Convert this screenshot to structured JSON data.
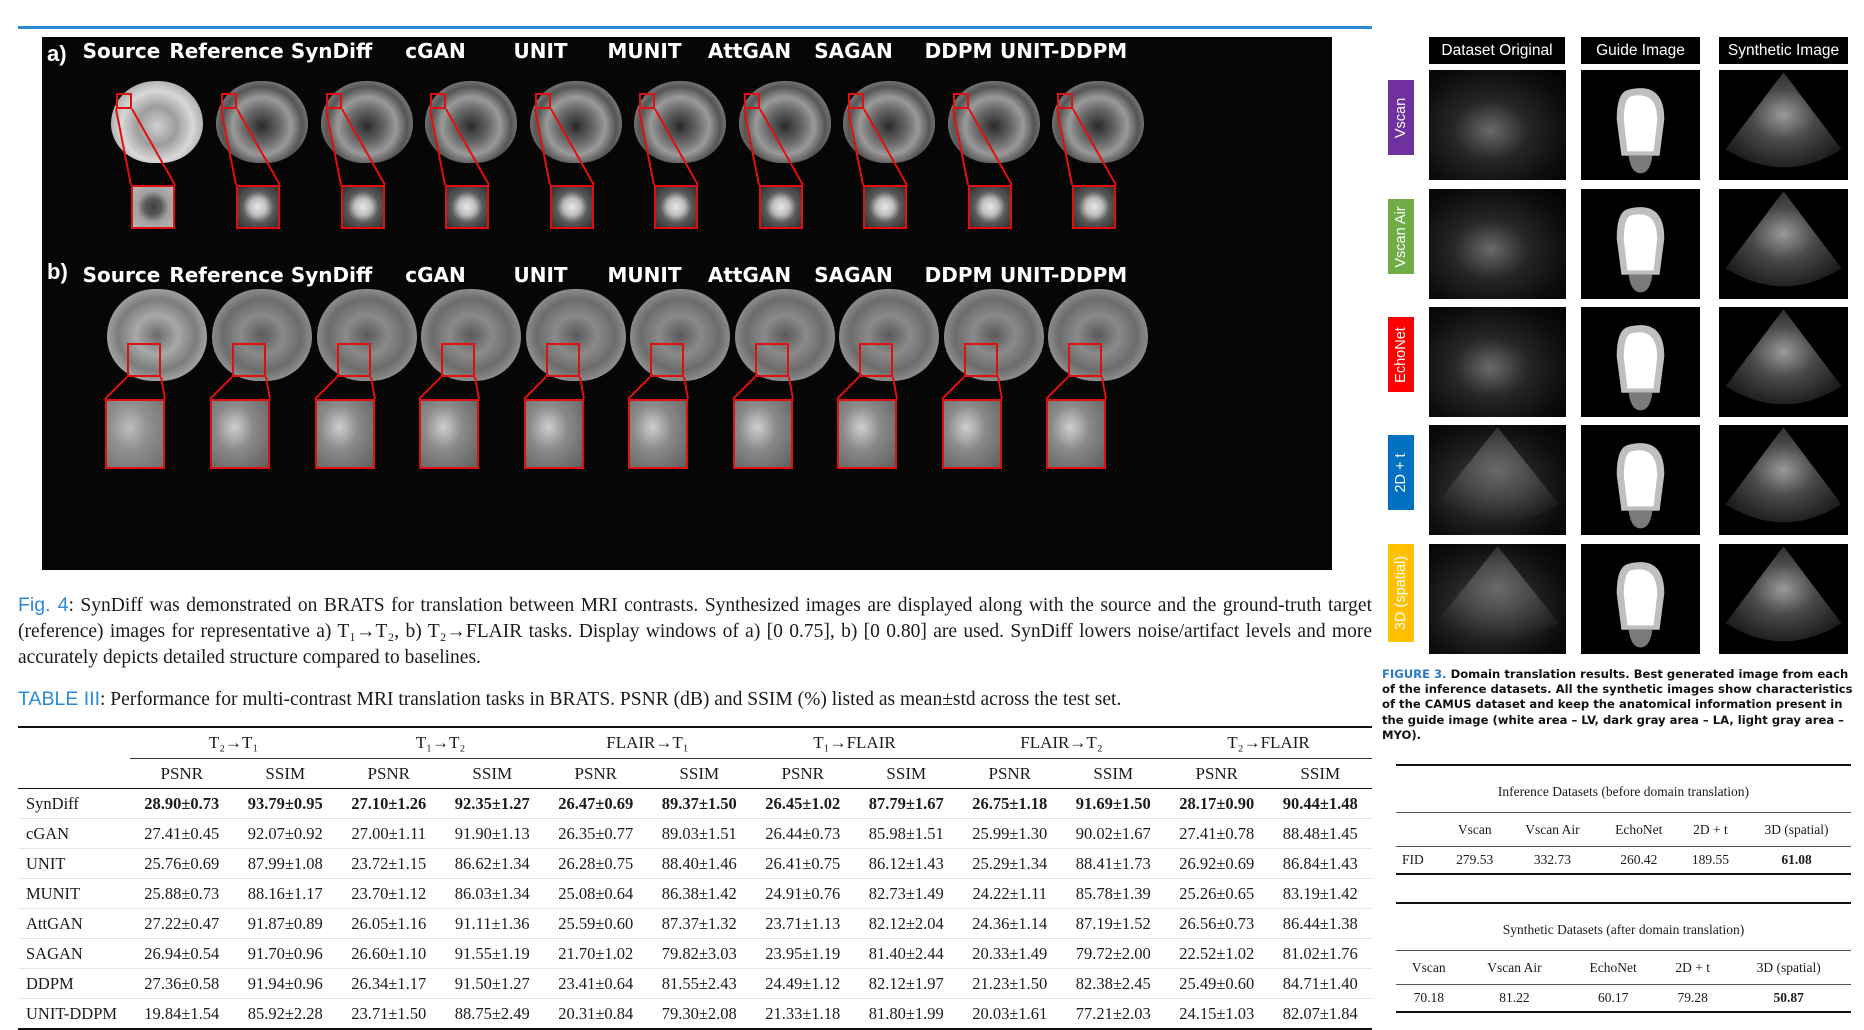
{
  "fig4": {
    "row_a_label": "a)",
    "row_b_label": "b)",
    "columns": [
      "Source",
      "Reference",
      "SynDiff",
      "cGAN",
      "UNIT",
      "MUNIT",
      "AttGAN",
      "SAGAN",
      "DDPM",
      "UNIT-DDPM"
    ],
    "caption_label": "Fig. 4",
    "caption_text": ": SynDiff was demonstrated on BRATS for translation between MRI contrasts. Synthesized images are displayed along with the source and the ground-truth target (reference) images for representative a) T₁→T₂, b) T₂→FLAIR tasks. Display windows of a) [0 0.75], b) [0 0.80] are used. SynDiff lowers noise/artifact levels and more accurately depicts detailed structure compared to baselines."
  },
  "table3": {
    "caption_label": "TABLE III",
    "caption_text": ": Performance for multi-contrast MRI translation tasks in BRATS. PSNR (dB) and SSIM (%) listed as mean±std across the test set.",
    "tasks": [
      "T₂→T₁",
      "T₁→T₂",
      "FLAIR→T₁",
      "T₁→FLAIR",
      "FLAIR→T₂",
      "T₂→FLAIR"
    ],
    "metric_psnr": "PSNR",
    "metric_ssim": "SSIM",
    "rows": [
      {
        "model": "SynDiff",
        "bold": true,
        "v": [
          "28.90±0.73",
          "93.79±0.95",
          "27.10±1.26",
          "92.35±1.27",
          "26.47±0.69",
          "89.37±1.50",
          "26.45±1.02",
          "87.79±1.67",
          "26.75±1.18",
          "91.69±1.50",
          "28.17±0.90",
          "90.44±1.48"
        ]
      },
      {
        "model": "cGAN",
        "bold": false,
        "v": [
          "27.41±0.45",
          "92.07±0.92",
          "27.00±1.11",
          "91.90±1.13",
          "26.35±0.77",
          "89.03±1.51",
          "26.44±0.73",
          "85.98±1.51",
          "25.99±1.30",
          "90.02±1.67",
          "27.41±0.78",
          "88.48±1.45"
        ]
      },
      {
        "model": "UNIT",
        "bold": false,
        "v": [
          "25.76±0.69",
          "87.99±1.08",
          "23.72±1.15",
          "86.62±1.34",
          "26.28±0.75",
          "88.40±1.46",
          "26.41±0.75",
          "86.12±1.43",
          "25.29±1.34",
          "88.41±1.73",
          "26.92±0.69",
          "86.84±1.43"
        ]
      },
      {
        "model": "MUNIT",
        "bold": false,
        "v": [
          "25.88±0.73",
          "88.16±1.17",
          "23.70±1.12",
          "86.03±1.34",
          "25.08±0.64",
          "86.38±1.42",
          "24.91±0.76",
          "82.73±1.49",
          "24.22±1.11",
          "85.78±1.39",
          "25.26±0.65",
          "83.19±1.42"
        ]
      },
      {
        "model": "AttGAN",
        "bold": false,
        "v": [
          "27.22±0.47",
          "91.87±0.89",
          "26.05±1.16",
          "91.11±1.36",
          "25.59±0.60",
          "87.37±1.32",
          "23.71±1.13",
          "82.12±2.04",
          "24.36±1.14",
          "87.19±1.52",
          "26.56±0.73",
          "86.44±1.38"
        ]
      },
      {
        "model": "SAGAN",
        "bold": false,
        "v": [
          "26.94±0.54",
          "91.70±0.96",
          "26.60±1.10",
          "91.55±1.19",
          "21.70±1.02",
          "79.82±3.03",
          "23.95±1.19",
          "81.40±2.44",
          "20.33±1.49",
          "79.72±2.00",
          "22.52±1.02",
          "81.02±1.76"
        ]
      },
      {
        "model": "DDPM",
        "bold": false,
        "v": [
          "27.36±0.58",
          "91.94±0.96",
          "26.34±1.17",
          "91.50±1.27",
          "23.41±0.64",
          "81.55±2.43",
          "24.49±1.12",
          "82.12±1.97",
          "21.23±1.50",
          "82.38±2.45",
          "25.49±0.60",
          "84.71±1.40"
        ]
      },
      {
        "model": "UNIT-DDPM",
        "bold": false,
        "v": [
          "19.84±1.54",
          "85.92±2.28",
          "23.71±1.50",
          "88.75±2.49",
          "20.31±0.84",
          "79.30±2.08",
          "21.33±1.18",
          "81.80±1.99",
          "20.03±1.61",
          "77.21±2.03",
          "24.15±1.03",
          "82.07±1.84"
        ]
      }
    ]
  },
  "fig3": {
    "headers": [
      "Dataset Original",
      "Guide Image",
      "Synthetic Image"
    ],
    "rows": [
      {
        "label": "Vscan",
        "color": "#7030a0"
      },
      {
        "label": "Vscan Air",
        "color": "#70ad47"
      },
      {
        "label": "EchoNet",
        "color": "#ff0000"
      },
      {
        "label": "2D + t",
        "color": "#0070c0"
      },
      {
        "label": "3D (spatial)",
        "color": "#ffc000"
      }
    ],
    "caption_label": "FIGURE 3.",
    "caption_text": " Domain translation results. Best generated image from each of the inference datasets. All the synthetic images show characteristics of the CAMUS dataset and keep the anatomical information present in the guide image (white area – LV, dark gray area – LA, light gray area – MYO)."
  },
  "fid_inference": {
    "title": "Inference Datasets (before domain translation)",
    "columns": [
      "",
      "Vscan",
      "Vscan Air",
      "EchoNet",
      "2D + t",
      "3D (spatial)"
    ],
    "row_label": "FID",
    "values": [
      "279.53",
      "332.73",
      "260.42",
      "189.55",
      "61.08"
    ]
  },
  "fid_synthetic": {
    "title": "Synthetic Datasets (after domain translation)",
    "columns": [
      "Vscan",
      "Vscan Air",
      "EchoNet",
      "2D + t",
      "3D (spatial)"
    ],
    "values": [
      "70.18",
      "81.22",
      "60.17",
      "79.28",
      "50.87"
    ]
  }
}
